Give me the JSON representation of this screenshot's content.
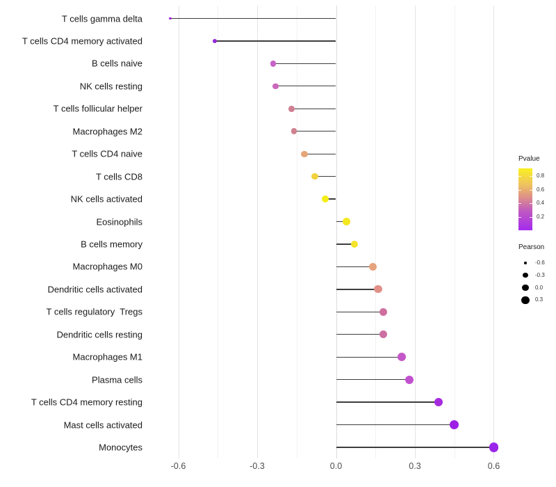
{
  "chart_data": {
    "type": "scatter",
    "variant": "lollipop",
    "title": "",
    "xlabel": "",
    "ylabel": "",
    "xlim": [
      -0.72,
      0.66
    ],
    "grid": true,
    "x_ticks": {
      "values": [
        -0.6,
        -0.3,
        0.0,
        0.3,
        0.6
      ],
      "labels": [
        "-0.6",
        "-0.3",
        "0.0",
        "0.3",
        "0.6"
      ]
    },
    "x_minor_ticks": [
      -0.45,
      -0.15,
      0.15,
      0.45
    ],
    "points": [
      {
        "label": "T cells gamma delta",
        "pearson": -0.63,
        "color": "#9c2bd4"
      },
      {
        "label": "T cells CD4 memory activated",
        "pearson": -0.46,
        "color": "#9329d4"
      },
      {
        "label": "B cells naive",
        "pearson": -0.24,
        "color": "#c763c6"
      },
      {
        "label": "NK cells resting",
        "pearson": -0.23,
        "color": "#ca68be"
      },
      {
        "label": "T cells follicular helper",
        "pearson": -0.17,
        "color": "#d07f92"
      },
      {
        "label": "Macrophages M2",
        "pearson": -0.16,
        "color": "#d0808e"
      },
      {
        "label": "T cells CD4 naive",
        "pearson": -0.12,
        "color": "#e5a679"
      },
      {
        "label": "T cells CD8",
        "pearson": -0.08,
        "color": "#f0d23d"
      },
      {
        "label": "NK cells activated",
        "pearson": -0.04,
        "color": "#f5ed1a"
      },
      {
        "label": "Eosinophils",
        "pearson": 0.04,
        "color": "#f4e81f"
      },
      {
        "label": "B cells memory",
        "pearson": 0.07,
        "color": "#f3e32a"
      },
      {
        "label": "Macrophages M0",
        "pearson": 0.14,
        "color": "#e6a37d"
      },
      {
        "label": "Dendritic cells activated",
        "pearson": 0.16,
        "color": "#e19089"
      },
      {
        "label": "T cells regulatory  Tregs",
        "pearson": 0.18,
        "color": "#ce6f9e"
      },
      {
        "label": "Dendritic cells resting",
        "pearson": 0.18,
        "color": "#cc70a1"
      },
      {
        "label": "Macrophages M1",
        "pearson": 0.25,
        "color": "#c458c8"
      },
      {
        "label": "Plasma cells",
        "pearson": 0.28,
        "color": "#c251d0"
      },
      {
        "label": "T cells CD4 memory resting",
        "pearson": 0.39,
        "color": "#a62bdf"
      },
      {
        "label": "Mast cells activated",
        "pearson": 0.45,
        "color": "#9d20e5"
      },
      {
        "label": "Monocytes",
        "pearson": 0.6,
        "color": "#9a25e9"
      }
    ],
    "legend_position": "right",
    "legends": {
      "pvalue": {
        "title": "Pvalue",
        "tick_labels": [
          "0.8",
          "0.6",
          "0.4",
          "0.2"
        ],
        "tick_values": [
          0.8,
          0.6,
          0.4,
          0.2
        ],
        "gradient_high_color": "#f9f121",
        "gradient_low_color": "#a020f0",
        "range": [
          0.01,
          0.91
        ]
      },
      "pearson": {
        "title": "Pearson",
        "entry_labels": [
          "-0.6",
          "-0.3",
          "0.0",
          "0.3"
        ],
        "entry_values": [
          -0.6,
          -0.3,
          0.0,
          0.3
        ],
        "dot_color": "#000000"
      }
    }
  }
}
